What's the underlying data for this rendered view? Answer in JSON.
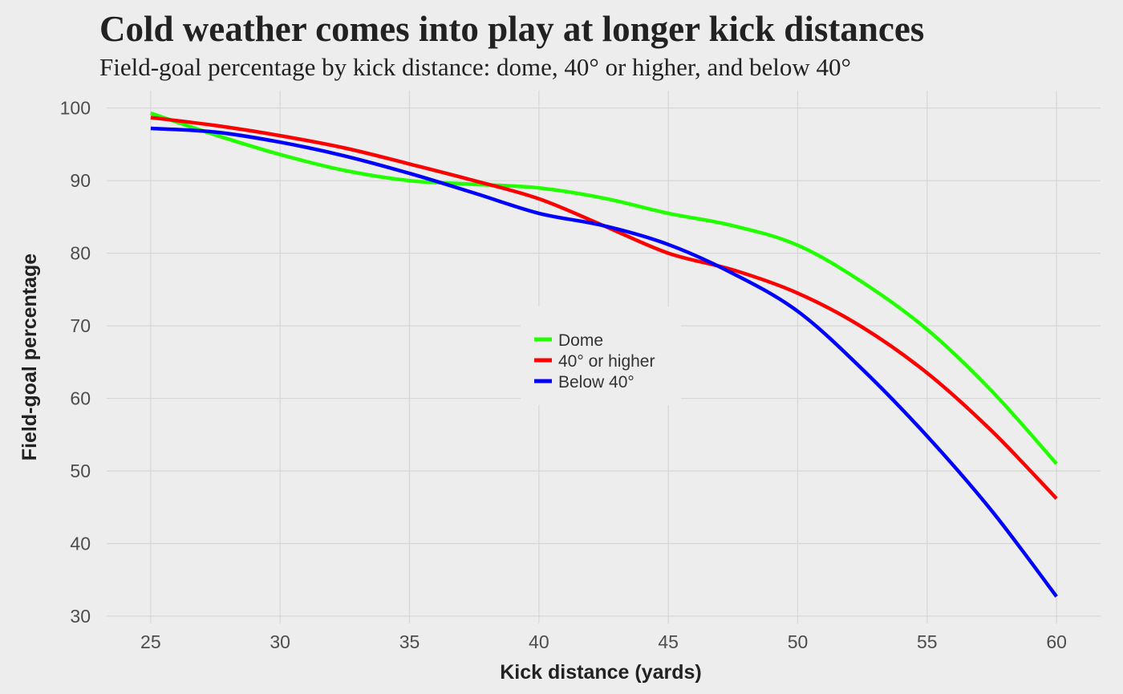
{
  "chart_data": {
    "type": "line",
    "title": "Cold weather comes into play at longer kick distances",
    "subtitle": "Field-goal percentage by kick distance: dome, 40° or higher, and below 40°",
    "xlabel": "Kick distance (yards)",
    "ylabel": "Field-goal percentage",
    "xlim": [
      23.3,
      61.7
    ],
    "ylim": [
      29,
      102.4
    ],
    "xticks": [
      25,
      30,
      35,
      40,
      45,
      50,
      55,
      60
    ],
    "yticks": [
      30,
      40,
      50,
      60,
      70,
      80,
      90,
      100
    ],
    "grid": true,
    "legend_position": "center",
    "x": [
      25,
      27.5,
      30,
      32.5,
      35,
      37.5,
      40,
      42.5,
      45,
      47.5,
      50,
      52.5,
      55,
      57.5,
      60
    ],
    "series": [
      {
        "name": "Dome",
        "color": "#22ff00",
        "values": [
          99.3,
          96.3,
          93.6,
          91.4,
          90.0,
          89.5,
          89.0,
          87.6,
          85.5,
          83.8,
          81.1,
          76.0,
          69.5,
          61.0,
          51.0
        ]
      },
      {
        "name": "40° or higher",
        "color": "#ff0000",
        "values": [
          98.7,
          97.6,
          96.2,
          94.5,
          92.3,
          90.0,
          87.5,
          83.8,
          80.0,
          77.7,
          74.5,
          69.8,
          63.5,
          55.5,
          46.2
        ]
      },
      {
        "name": "Below 40°",
        "color": "#0000ff",
        "values": [
          97.2,
          96.7,
          95.3,
          93.4,
          91.0,
          88.3,
          85.5,
          83.8,
          81.2,
          77.2,
          72.0,
          64.0,
          54.8,
          44.5,
          32.7
        ]
      }
    ]
  }
}
